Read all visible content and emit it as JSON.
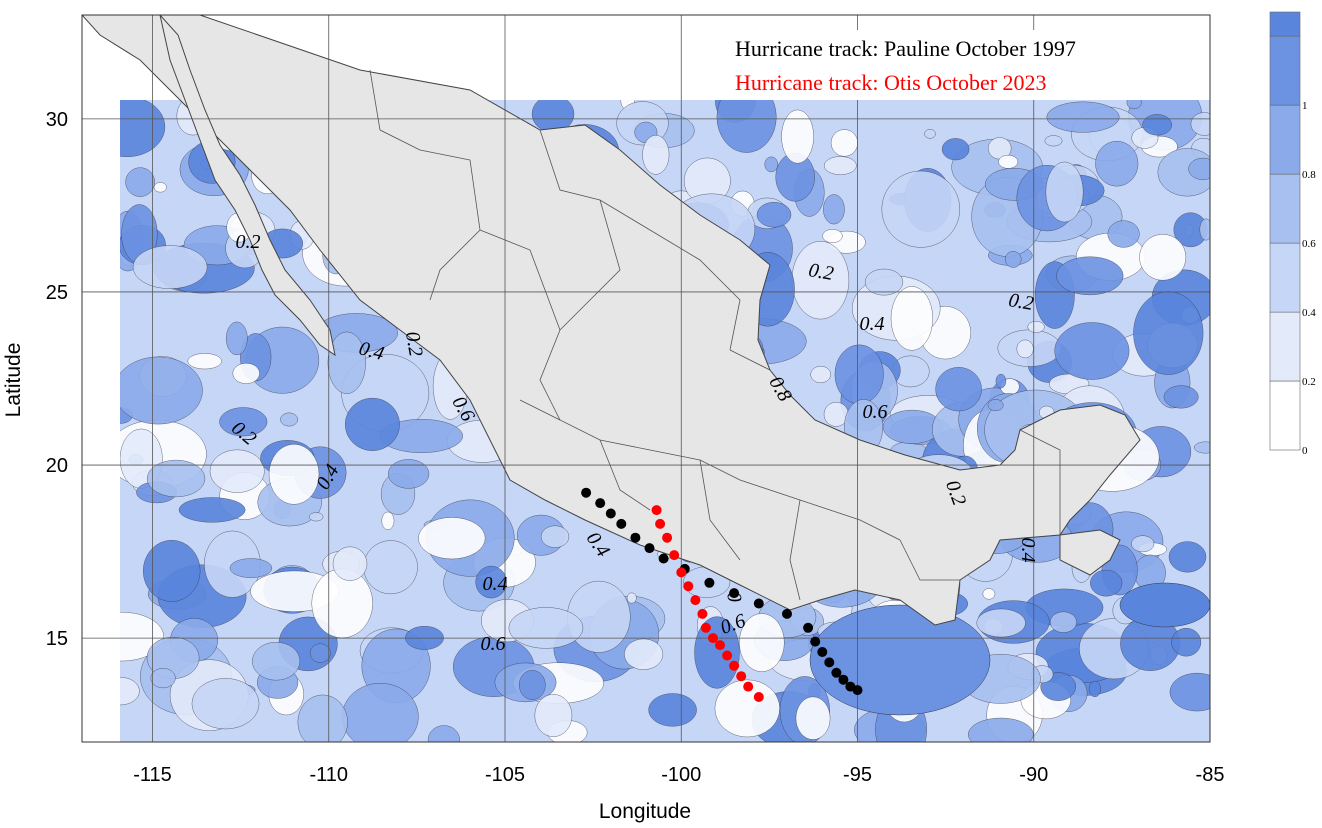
{
  "map": {
    "extent": {
      "lon": [
        -117,
        -85
      ],
      "lat": [
        12,
        33
      ]
    },
    "x_ticks": [
      -115,
      -110,
      -105,
      -100,
      -95,
      -90,
      -85
    ],
    "y_ticks": [
      15,
      20,
      25,
      30
    ],
    "xlabel": "Longitude",
    "ylabel": "Latitude",
    "land_color": "#e6e6e6",
    "colors": [
      "#ffffff",
      "#e3ebfb",
      "#c6d6f6",
      "#a7c0f0",
      "#8aaaea",
      "#6c92e2",
      "#5a85dc"
    ]
  },
  "legend": {
    "pauline": {
      "label": "Hurricane track: Pauline October 1997",
      "color": "#000000"
    },
    "otis": {
      "label": "Hurricane track: Otis October 2023",
      "color": "#ff0000"
    }
  },
  "colorbar": {
    "levels": [
      0,
      0.2,
      0.4,
      0.6,
      0.8,
      1
    ],
    "labels": [
      "0",
      "0.2",
      "0.4",
      "0.6",
      "0.8",
      "1"
    ]
  },
  "contour_labels": [
    "0.2",
    "0.2",
    "0.4",
    "0.8",
    "0.6",
    "0.2",
    "0.2",
    "0.4",
    "0.6",
    "0.4",
    "0.2",
    "0.4",
    "0.4",
    "0.6",
    "0.6",
    "0",
    "0.4",
    "0.2"
  ],
  "tracks": {
    "pauline": [
      [
        -102.7,
        19.2
      ],
      [
        -102.3,
        18.9
      ],
      [
        -102.0,
        18.6
      ],
      [
        -101.7,
        18.3
      ],
      [
        -101.3,
        17.9
      ],
      [
        -100.9,
        17.6
      ],
      [
        -100.5,
        17.3
      ],
      [
        -99.9,
        17.0
      ],
      [
        -99.2,
        16.6
      ],
      [
        -98.5,
        16.3
      ],
      [
        -97.8,
        16.0
      ],
      [
        -97.0,
        15.7
      ],
      [
        -96.4,
        15.3
      ],
      [
        -96.2,
        14.9
      ],
      [
        -96.0,
        14.6
      ],
      [
        -95.8,
        14.3
      ],
      [
        -95.6,
        14.0
      ],
      [
        -95.4,
        13.8
      ],
      [
        -95.2,
        13.6
      ],
      [
        -95.0,
        13.5
      ]
    ],
    "otis": [
      [
        -100.7,
        18.7
      ],
      [
        -100.6,
        18.3
      ],
      [
        -100.4,
        17.9
      ],
      [
        -100.2,
        17.4
      ],
      [
        -100.0,
        16.9
      ],
      [
        -99.8,
        16.5
      ],
      [
        -99.6,
        16.1
      ],
      [
        -99.4,
        15.7
      ],
      [
        -99.3,
        15.3
      ],
      [
        -99.1,
        15.0
      ],
      [
        -98.9,
        14.8
      ],
      [
        -98.7,
        14.5
      ],
      [
        -98.5,
        14.2
      ],
      [
        -98.3,
        13.9
      ],
      [
        -98.1,
        13.6
      ],
      [
        -97.8,
        13.3
      ]
    ]
  }
}
